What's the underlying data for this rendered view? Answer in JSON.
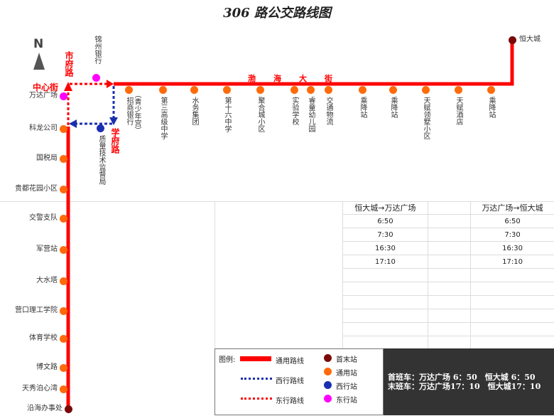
{
  "title": "306 路公交路线图",
  "compass": "N",
  "colors": {
    "main": "#ff0000",
    "terminal": "#7a0a0a",
    "common": "#ff6a0a",
    "west": "#1a2fb0",
    "east": "#ff00ff",
    "westLine": "#1a2fb0",
    "eastLine": "#ff0000"
  },
  "streets": {
    "shifu": "市府路",
    "zhongxin": "中心街",
    "xuefu": "学府路",
    "bohai": [
      "渤",
      "海",
      "大",
      "街"
    ]
  },
  "stations_left": [
    {
      "name": "万达广场",
      "type": "east"
    },
    {
      "name": "科龙公司",
      "type": "common"
    },
    {
      "name": "国税局",
      "type": "common"
    },
    {
      "name": "贵都花园小区",
      "type": "common"
    },
    {
      "name": "交警支队",
      "type": "common"
    },
    {
      "name": "军营站",
      "type": "common"
    },
    {
      "name": "大水塔",
      "type": "common"
    },
    {
      "name": "营口理工学院",
      "type": "common"
    },
    {
      "name": "体育学校",
      "type": "common"
    },
    {
      "name": "博文路",
      "type": "common"
    },
    {
      "name": "天秀泊心湾",
      "type": "common"
    },
    {
      "name": "沿海办事处",
      "type": "terminal"
    }
  ],
  "stations_top": [
    {
      "name": "招商银行",
      "sub": "（青少年宫）",
      "type": "common"
    },
    {
      "name": "第三高级中学",
      "type": "common"
    },
    {
      "name": "水务集团",
      "type": "common"
    },
    {
      "name": "第十六中学",
      "type": "common"
    },
    {
      "name": "聚合城小区",
      "type": "common"
    },
    {
      "name": "实验学校",
      "type": "common"
    },
    {
      "name": "睿童幼儿园",
      "type": "common"
    },
    {
      "name": "交通物流",
      "type": "common"
    },
    {
      "name": "乘降站",
      "type": "common"
    },
    {
      "name": "乘降站",
      "type": "common"
    },
    {
      "name": "天赋领墅小区",
      "type": "common"
    },
    {
      "name": "天赋酒店",
      "type": "common"
    },
    {
      "name": "乘降站",
      "type": "common"
    }
  ],
  "station_jinzhou": {
    "name": "锦州银行",
    "type": "east"
  },
  "station_zhiliang": {
    "name": "质量技术监督局",
    "type": "west"
  },
  "terminal_top": {
    "name": "恒大城",
    "type": "terminal"
  },
  "timetable": {
    "headers": [
      "恒大城→万达广场",
      "",
      "万达广场→恒大城"
    ],
    "rows": [
      [
        "6:50",
        "",
        "6:50"
      ],
      [
        "7:30",
        "",
        "7:30"
      ],
      [
        "16:30",
        "",
        "16:30"
      ],
      [
        "17:10",
        "",
        "17:10"
      ],
      [
        "",
        "",
        ""
      ],
      [
        "",
        "",
        ""
      ],
      [
        "",
        "",
        ""
      ],
      [
        "",
        "",
        ""
      ],
      [
        "",
        "",
        ""
      ],
      [
        "",
        "",
        ""
      ]
    ]
  },
  "legend": {
    "title": "图例:",
    "lines": [
      "通用路线",
      "西行路线",
      "东行路线"
    ],
    "stations": [
      "首末站",
      "通用站",
      "西行站",
      "东行站"
    ]
  },
  "info": {
    "first": "首班车：万达广场 6：50　恒大城 6：50",
    "last": "末班车：万达广场17：10　恒大城17：10"
  }
}
